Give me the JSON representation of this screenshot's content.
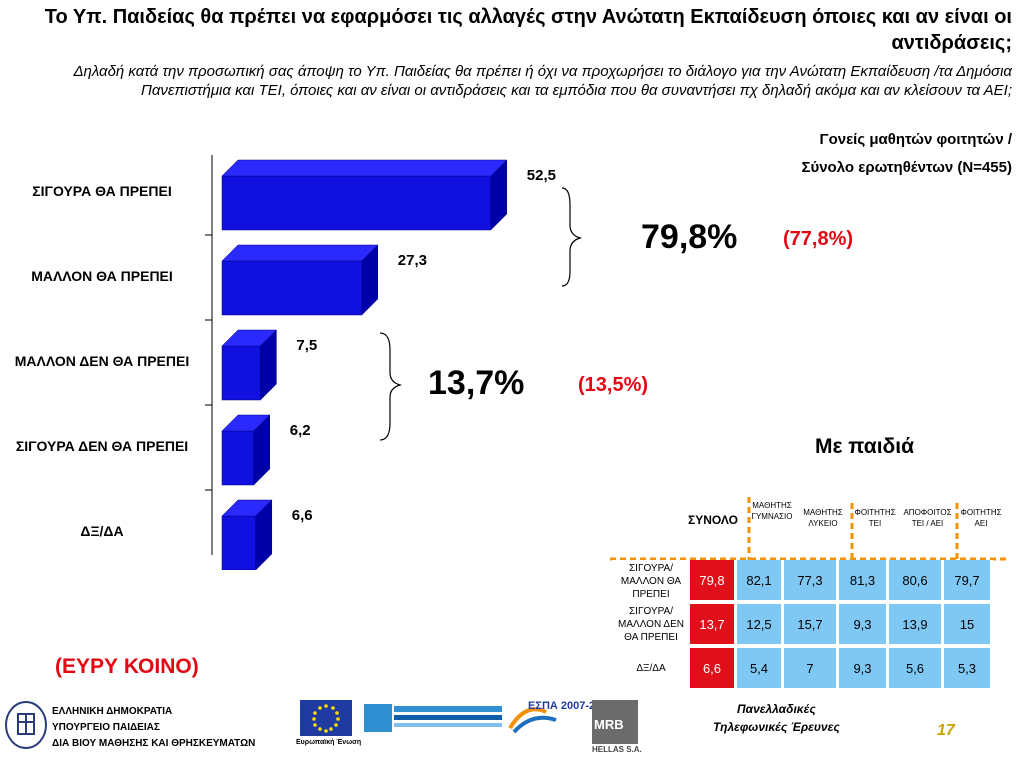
{
  "header": {
    "title": "Το Υπ. Παιδείας θα πρέπει να εφαρμόσει τις αλλαγές στην Ανώτατη Εκπαίδευση όποιες και αν είναι οι αντιδράσεις;",
    "subtitle": "Δηλαδή κατά την προσωπική σας άποψη το Υπ. Παιδείας θα πρέπει ή όχι να προχωρήσει το διάλογο για την Ανώτατη Εκπαίδευση /τα Δημόσια Πανεπιστήμια και ΤΕΙ, όποιες και αν είναι οι αντιδράσεις και τα εμπόδια που θα συναντήσει πχ δηλαδή ακόμα και αν κλείσουν τα ΑΕΙ;",
    "audience_line1": "Γονείς μαθητών φοιτητών /",
    "audience_line2": "Σύνολο ερωτηθέντων (N=455)"
  },
  "chart_data": {
    "type": "bar",
    "orientation": "horizontal",
    "categories": [
      "ΣΙΓΟΥΡΑ ΘΑ ΠΡΕΠΕΙ",
      "ΜΑΛΛΟΝ ΘΑ ΠΡΕΠΕΙ",
      "ΜΑΛΛΟΝ ΔΕΝ ΘΑ ΠΡΕΠΕΙ",
      "ΣΙΓΟΥΡΑ ΔΕΝ ΘΑ ΠΡΕΠΕΙ",
      "ΔΞ/ΔΑ"
    ],
    "values": [
      52.5,
      27.3,
      7.5,
      6.2,
      6.6
    ],
    "value_labels": [
      "52,5",
      "27,3",
      "7,5",
      "6,2",
      "6,6"
    ],
    "xlim": [
      0,
      60
    ],
    "bar_color": "#1010e0",
    "groups": [
      {
        "label": "79,8%",
        "compare": "(77,8%)"
      },
      {
        "label": "13,7%",
        "compare": "(13,5%)"
      }
    ]
  },
  "table": {
    "title": "Με παιδιά",
    "headers": [
      "ΣΥΝΟΛΟ",
      "ΜΑΘΗΤΗΣ ΓΥΜΝΑΣΙΟ",
      "ΜΑΘΗΤΗΣ ΛΥΚΕΙΟ",
      "ΦΟΙΤΗΤΗΣ ΤΕΙ",
      "ΑΠΟΦΟΙΤΟΣ ΤΕΙ / ΑΕΙ",
      "ΦΟΙΤΗΤΗΣ ΑΕΙ"
    ],
    "rows": [
      {
        "label": "ΣΙΓΟΥΡΑ/ ΜΑΛΛΟΝ ΘΑ ΠΡΕΠΕΙ",
        "values": [
          "79,8",
          "82,1",
          "77,3",
          "81,3",
          "80,6",
          "79,7"
        ]
      },
      {
        "label": "ΣΙΓΟΥΡΑ/ ΜΑΛΛΟΝ ΔΕΝ ΘΑ ΠΡΕΠΕΙ",
        "values": [
          "13,7",
          "12,5",
          "15,7",
          "9,3",
          "13,9",
          "15"
        ]
      },
      {
        "label": "ΔΞ/ΔΑ",
        "values": [
          "6,6",
          "5,4",
          "7",
          "9,3",
          "5,6",
          "5,3"
        ]
      }
    ]
  },
  "footer": {
    "audience_note": "(ΕΥΡΥ ΚΟΙΝΟ)",
    "gov_line1": "ΕΛΛΗΝΙΚΗ ΔΗΜΟΚΡΑΤΙΑ",
    "gov_line2": "ΥΠΟΥΡΓΕΙΟ ΠΑΙΔΕΙΑΣ",
    "gov_line3": "ΔΙΑ ΒΙΟΥ ΜΑΘΗΣΗΣ ΚΑΙ ΘΡΗΣΚΕΥΜΑΤΩΝ",
    "eu_label": "Ευρωπαϊκή Ένωση",
    "espa_label": "ΕΣΠΑ 2007-2013",
    "mrb_label": "MRB",
    "mrb_sub": "HELLAS S.A.",
    "survey_line1": "Πανελλαδικές",
    "survey_line2": "Τηλεφωνικές Έρευνες",
    "page_number": "17"
  }
}
